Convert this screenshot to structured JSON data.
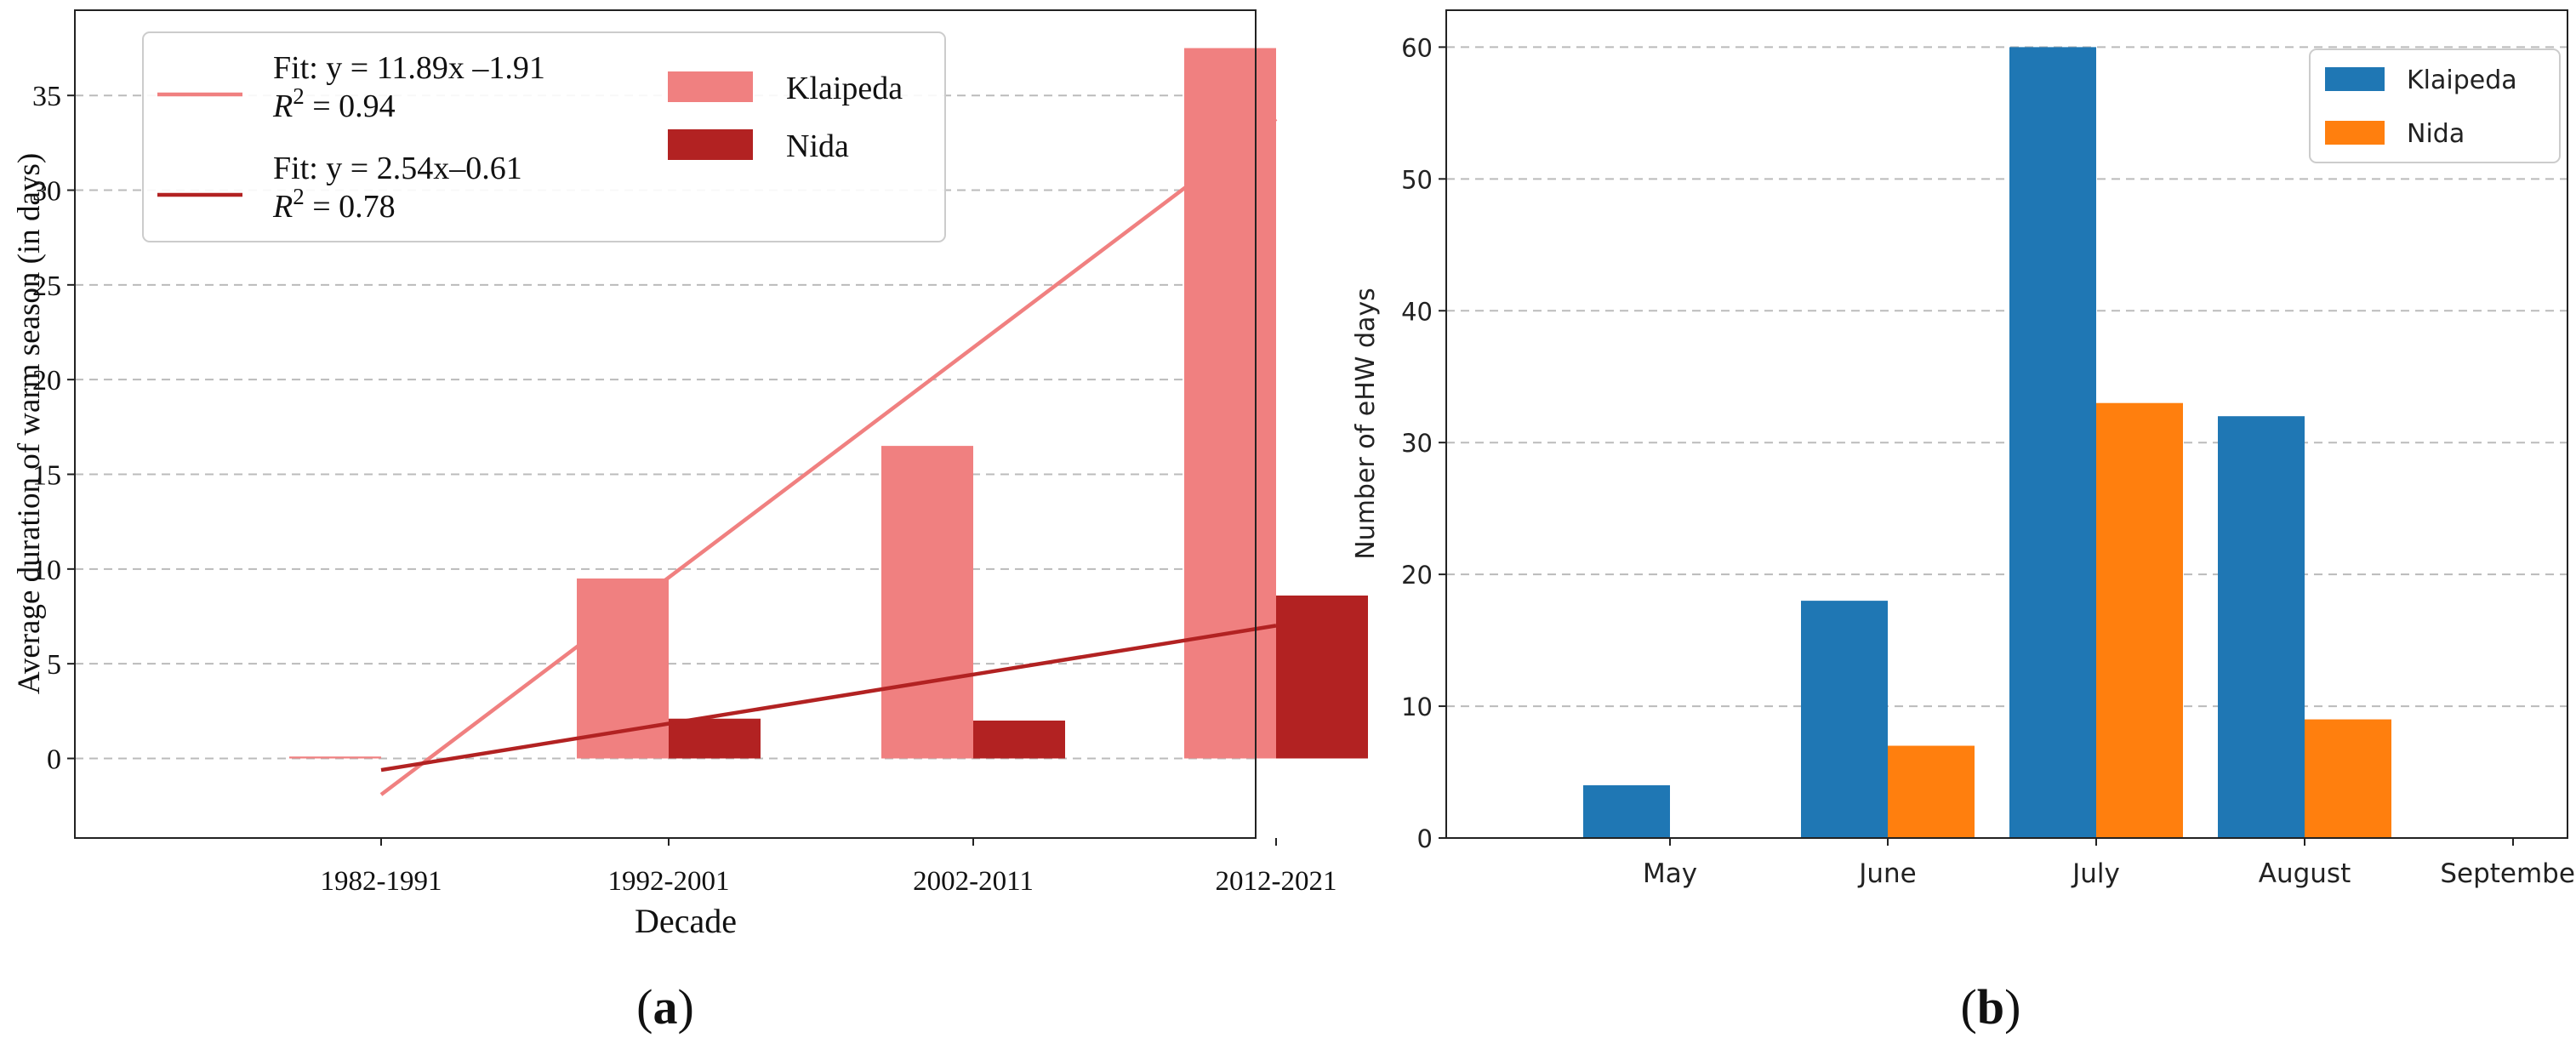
{
  "chart_data": [
    {
      "type": "bar",
      "panel_label": "a",
      "title": "",
      "categories": [
        "1982-1991",
        "1992-2001",
        "2002-2011",
        "2012-2021"
      ],
      "series": [
        {
          "name": "Klaipeda",
          "color": "#f08080",
          "values": [
            0.1,
            9.5,
            16.5,
            37.5
          ]
        },
        {
          "name": "Nida",
          "color": "#b22222",
          "values": [
            0.0,
            2.1,
            2.0,
            8.6
          ]
        }
      ],
      "fits": [
        {
          "name": "Fit: y = 11.89x –1.91",
          "r2_prefix": "R",
          "r2_sup": "2",
          "r2_value": " = 0.94",
          "color": "#f08080",
          "slope": 11.89,
          "intercept": -1.91
        },
        {
          "name": "Fit: y = 2.54x–0.61",
          "r2_prefix": "R",
          "r2_sup": "2",
          "r2_value": " = 0.78",
          "color": "#b22222",
          "slope": 2.54,
          "intercept": -0.61
        }
      ],
      "xlabel": "Decade",
      "ylabel": "Average duration of warm season (in days)",
      "ylim": [
        -4.2,
        39.5
      ],
      "yticks": [
        0,
        5,
        10,
        15,
        20,
        25,
        30,
        35
      ],
      "grid": "y-dashed",
      "legend": "top-left"
    },
    {
      "type": "bar",
      "panel_label": "b",
      "title": "",
      "categories": [
        "May",
        "June",
        "July",
        "August",
        "September"
      ],
      "series": [
        {
          "name": "Klaipeda",
          "color": "#1f77b4",
          "values": [
            4,
            18,
            60,
            32,
            0
          ]
        },
        {
          "name": "Nida",
          "color": "#ff7f0e",
          "values": [
            0,
            7,
            33,
            9,
            0
          ]
        }
      ],
      "xlabel": "",
      "ylabel": "Number of eHW days",
      "ylim": [
        0,
        62.8
      ],
      "yticks": [
        0,
        10,
        20,
        30,
        40,
        50,
        60
      ],
      "grid": "y-dashed",
      "legend": "top-right"
    }
  ]
}
